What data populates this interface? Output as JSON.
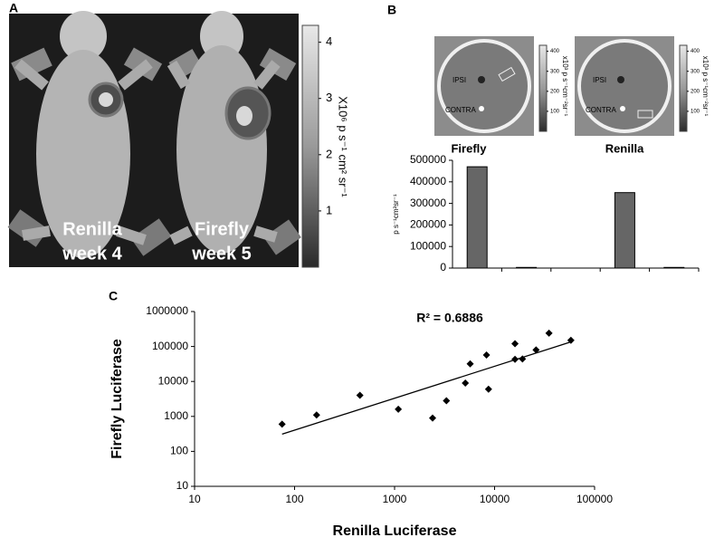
{
  "panel_labels": [
    "A",
    "B",
    "C"
  ],
  "panel_a": {
    "images": [
      {
        "line1": "Renilla",
        "line2": "week 4"
      },
      {
        "line1": "Firefly",
        "line2": "week 5"
      }
    ],
    "colorbar": {
      "lim": [
        0,
        4.3
      ],
      "ticks": [
        1,
        2,
        3,
        4
      ],
      "label": "X10⁶ p s⁻¹ cm² sr⁻¹"
    }
  },
  "panel_b": {
    "images": [
      {
        "title": "Firefly",
        "spots": [
          "IPSI",
          "CONTRA"
        ]
      },
      {
        "title": "Renilla",
        "spots": [
          "IPSI",
          "CONTRA"
        ]
      }
    ],
    "colorbar": {
      "lim": [
        0,
        430
      ],
      "ticks": [
        100,
        200,
        300,
        400
      ],
      "label": "x10³ p s⁻¹cm⁻²sr⁻¹"
    }
  },
  "chart_data": [
    {
      "type": "bar",
      "categories": [
        null,
        null,
        null,
        null,
        null
      ],
      "values": [
        470000,
        3000,
        0,
        350000,
        3000
      ],
      "color": "#666666",
      "ylim": [
        0,
        500000
      ],
      "yticks": [
        0,
        100000,
        200000,
        300000,
        400000,
        500000
      ],
      "y_label": "p s⁻¹cm²sr⁻¹"
    },
    {
      "type": "scatter",
      "annotation": "R² = 0.6886",
      "x_label": "Renilla Luciferase",
      "y_label": "Firefly Luciferase",
      "x": [
        75,
        166,
        450,
        1090,
        2400,
        3300,
        5100,
        5700,
        8300,
        8700,
        16000,
        16000,
        19000,
        26000,
        35000,
        58000
      ],
      "values": [
        600,
        1100,
        4000,
        1600,
        900,
        2800,
        9000,
        32000,
        57000,
        6000,
        120000,
        43000,
        44000,
        80000,
        240000,
        150000
      ],
      "color": "#000000",
      "log_x": true,
      "log_y": true,
      "trendline": true,
      "xlim": [
        10,
        100000
      ],
      "ylim": [
        10,
        1000000
      ],
      "xticks": [
        10,
        100,
        1000,
        10000,
        100000
      ],
      "yticks": [
        10,
        100,
        1000,
        10000,
        100000,
        1000000
      ]
    }
  ]
}
